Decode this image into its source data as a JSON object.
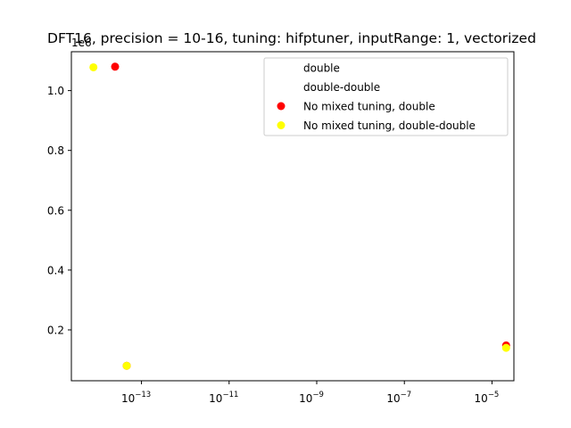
{
  "chart_data": {
    "type": "scatter",
    "title": "DFT16, precision = 10-16, tuning: hifptuner, inputRange: 1, vectorized",
    "xlabel": "",
    "ylabel": "",
    "xscale": "log",
    "x_log_range": [
      -14.6,
      -4.5
    ],
    "ylim": [
      0.03,
      1.13
    ],
    "y_offset_label": "1e6",
    "x_ticks": [
      {
        "base": "10",
        "exp": "−13",
        "value": -13
      },
      {
        "base": "10",
        "exp": "−11",
        "value": -11
      },
      {
        "base": "10",
        "exp": "−9",
        "value": -9
      },
      {
        "base": "10",
        "exp": "−7",
        "value": -7
      },
      {
        "base": "10",
        "exp": "−5",
        "value": -5
      }
    ],
    "y_ticks": [
      {
        "label": "0.2",
        "value": 0.2
      },
      {
        "label": "0.4",
        "value": 0.4
      },
      {
        "label": "0.6",
        "value": 0.6
      },
      {
        "label": "0.8",
        "value": 0.8
      },
      {
        "label": "1.0",
        "value": 1.0
      }
    ],
    "legend_position": "top-right",
    "series": [
      {
        "name": "double",
        "color": "",
        "points": []
      },
      {
        "name": "double-double",
        "color": "",
        "points": []
      },
      {
        "name": "No mixed tuning, double",
        "color": "#ff0000",
        "points": [
          {
            "x": 2.5e-14,
            "y": 1.08
          },
          {
            "x": 4.6e-14,
            "y": 0.08
          },
          {
            "x": 2.1e-05,
            "y": 0.148
          }
        ]
      },
      {
        "name": "No mixed tuning, double-double",
        "color": "#ffff00",
        "points": [
          {
            "x": 8e-15,
            "y": 1.078
          },
          {
            "x": 4.6e-14,
            "y": 0.08
          },
          {
            "x": 2.1e-05,
            "y": 0.14
          }
        ]
      }
    ]
  }
}
